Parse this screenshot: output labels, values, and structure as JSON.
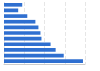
{
  "chart_data": {
    "type": "bar",
    "orientation": "horizontal",
    "categories": [
      null,
      null,
      null,
      null,
      null,
      null,
      null,
      null,
      null,
      null,
      null
    ],
    "values": [
      18,
      14,
      23,
      31,
      34,
      36,
      37,
      46,
      51,
      59,
      78
    ],
    "color": "#2f6fd0",
    "xlim": [
      0,
      80
    ],
    "xticks": [
      0,
      20,
      40,
      60,
      80
    ],
    "grid": true,
    "tick_labels": false
  }
}
